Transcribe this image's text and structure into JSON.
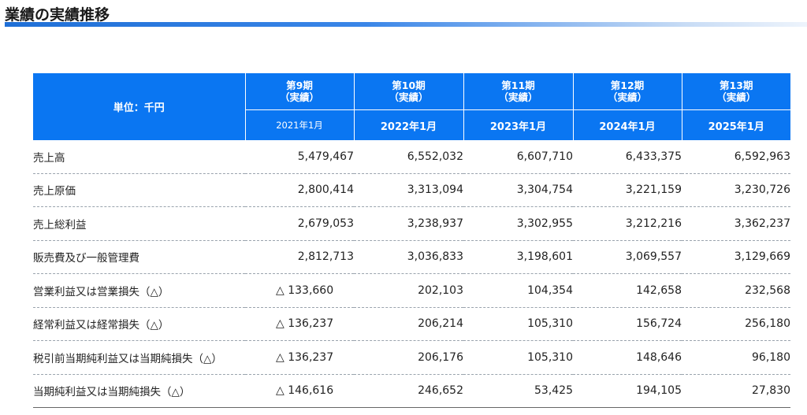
{
  "page": {
    "title": "業績の実績推移"
  },
  "table": {
    "unit_label": "単位：千円",
    "columns": [
      {
        "period": "第9期",
        "note": "（実績）",
        "date": "2021年1月"
      },
      {
        "period": "第10期",
        "note": "（実績）",
        "date": "2022年1月"
      },
      {
        "period": "第11期",
        "note": "（実績）",
        "date": "2023年1月"
      },
      {
        "period": "第12期",
        "note": "（実績）",
        "date": "2024年1月"
      },
      {
        "period": "第13期",
        "note": "（実績）",
        "date": "2025年1月"
      }
    ],
    "rows": [
      {
        "label": "売上高",
        "values": [
          "5,479,467",
          "6,552,032",
          "6,607,710",
          "6,433,375",
          "6,592,963"
        ]
      },
      {
        "label": "売上原価",
        "values": [
          "2,800,414",
          "3,313,094",
          "3,304,754",
          "3,221,159",
          "3,230,726"
        ]
      },
      {
        "label": "売上総利益",
        "values": [
          "2,679,053",
          "3,238,937",
          "3,302,955",
          "3,212,216",
          "3,362,237"
        ]
      },
      {
        "label": "販売費及び一般管理費",
        "values": [
          "2,812,713",
          "3,036,833",
          "3,198,601",
          "3,069,557",
          "3,129,669"
        ]
      },
      {
        "label": "営業利益又は営業損失（△）",
        "values": [
          "△ 133,660",
          "202,103",
          "104,354",
          "142,658",
          "232,568"
        ]
      },
      {
        "label": "経常利益又は経常損失（△）",
        "values": [
          "△ 136,237",
          "206,214",
          "105,310",
          "156,724",
          "256,180"
        ]
      },
      {
        "label": "税引前当期純利益又は当期純損失（△）",
        "values": [
          "△ 136,237",
          "206,176",
          "105,310",
          "148,646",
          "96,180"
        ]
      },
      {
        "label": "当期純利益又は当期純損失（△）",
        "values": [
          "△ 146,616",
          "246,652",
          "53,425",
          "194,105",
          "27,830"
        ]
      }
    ]
  }
}
